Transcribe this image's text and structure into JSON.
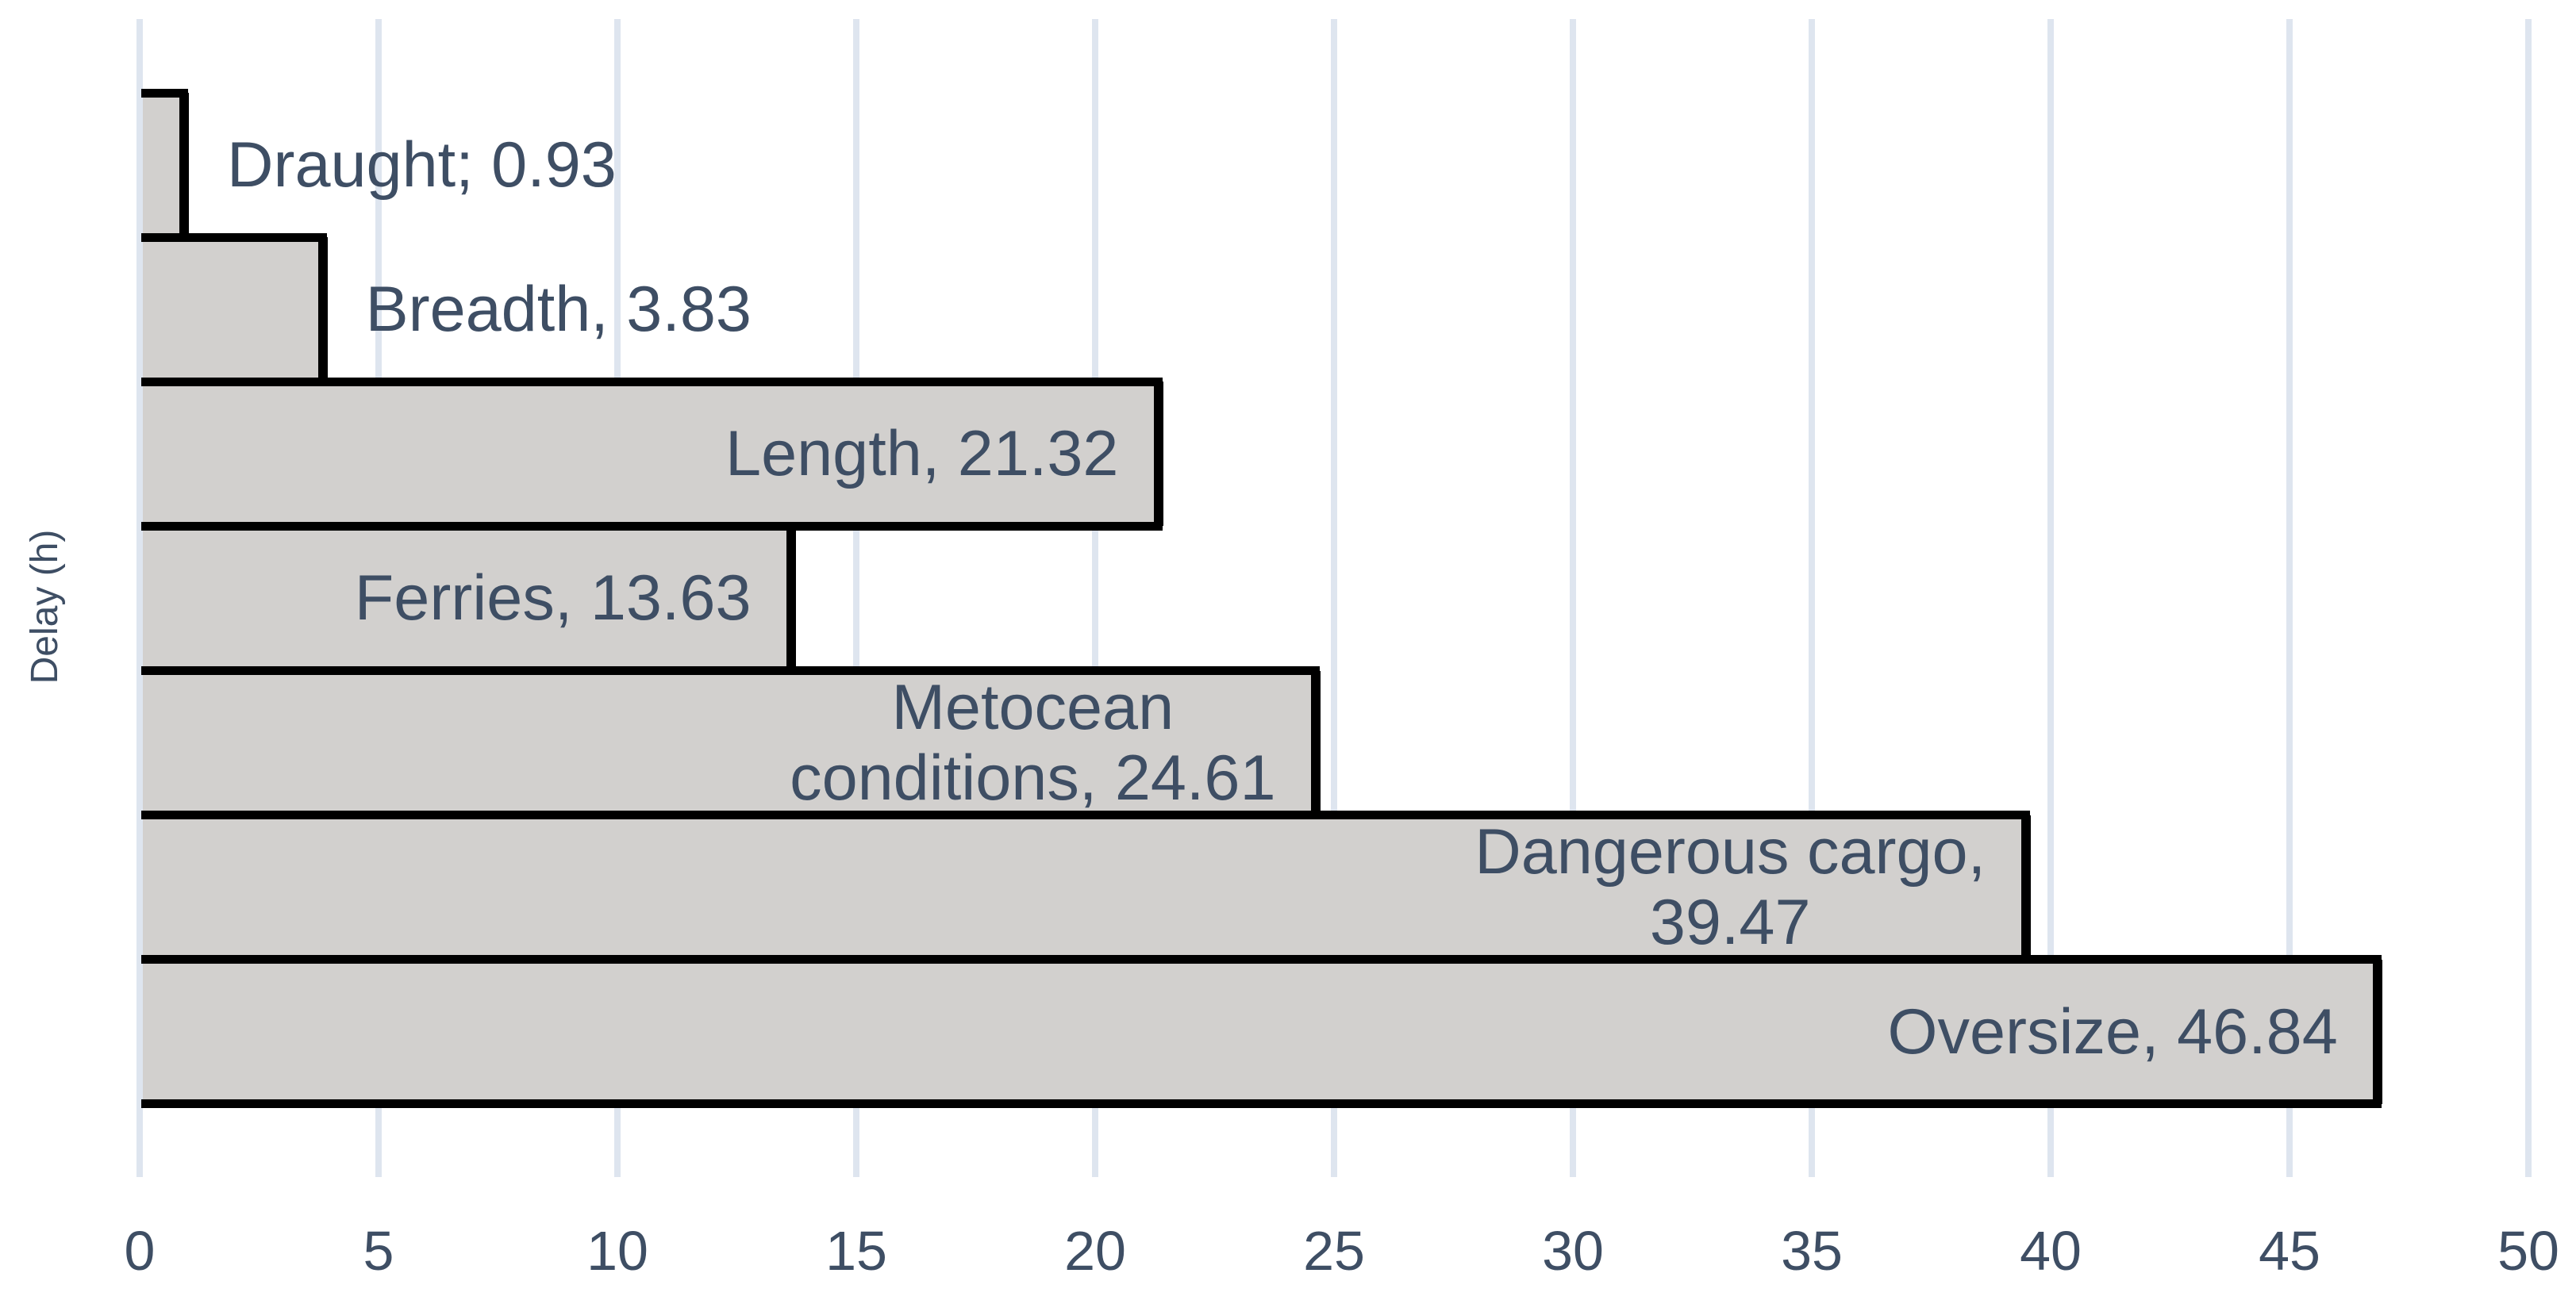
{
  "chart_data": {
    "type": "bar",
    "orientation": "horizontal",
    "title": "",
    "xlabel": "",
    "ylabel": "Delay (h)",
    "xlim": [
      0,
      50
    ],
    "xtick_step": 5,
    "xticks": [
      "0",
      "5",
      "10",
      "15",
      "20",
      "25",
      "30",
      "35",
      "40",
      "45",
      "50"
    ],
    "grid": "vertical-gridlines-only",
    "legend": "none",
    "categories": [
      "Draught",
      "Breadth",
      "Length",
      "Ferries",
      "Metocean conditions",
      "Dangerous cargo",
      "Oversize"
    ],
    "values": [
      0.93,
      3.83,
      21.32,
      13.63,
      24.61,
      39.47,
      46.84
    ],
    "bars": [
      {
        "category": "Draught",
        "value": 0.93,
        "label_lines": [
          "Draught; 0.93"
        ],
        "label_placement": "outside"
      },
      {
        "category": "Breadth",
        "value": 3.83,
        "label_lines": [
          "Breadth, 3.83"
        ],
        "label_placement": "outside"
      },
      {
        "category": "Length",
        "value": 21.32,
        "label_lines": [
          "Length, 21.32"
        ],
        "label_placement": "inside"
      },
      {
        "category": "Ferries",
        "value": 13.63,
        "label_lines": [
          "Ferries, 13.63"
        ],
        "label_placement": "inside"
      },
      {
        "category": "Metocean conditions",
        "value": 24.61,
        "label_lines": [
          "Metocean",
          "conditions, 24.61"
        ],
        "label_placement": "inside"
      },
      {
        "category": "Dangerous cargo",
        "value": 39.47,
        "label_lines": [
          "Dangerous cargo,",
          "39.47"
        ],
        "label_placement": "inside"
      },
      {
        "category": "Oversize",
        "value": 46.84,
        "label_lines": [
          "Oversize, 46.84"
        ],
        "label_placement": "inside"
      }
    ],
    "colors": {
      "background": "#FFFFFF",
      "bar_fill": "#D2D0CE",
      "bar_border": "#000000",
      "gridline": "#DEE5EF",
      "text": "#3E4E64"
    }
  }
}
